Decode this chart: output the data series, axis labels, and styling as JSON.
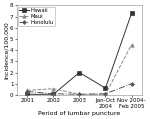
{
  "x_labels": [
    "2001",
    "2002",
    "2003",
    "Jan-Oct\n2004",
    "Nov 2004-\nFeb 2005"
  ],
  "x_positions": [
    0,
    1,
    2,
    3,
    4
  ],
  "series": [
    {
      "name": "Hawaii",
      "values": [
        0.05,
        0.05,
        2.0,
        0.6,
        7.3
      ],
      "color": "#333333",
      "linestyle": "-",
      "marker": "s",
      "markersize": 2.5,
      "linewidth": 0.7
    },
    {
      "name": "Maui",
      "values": [
        0.4,
        0.55,
        0.05,
        0.05,
        4.5
      ],
      "color": "#888888",
      "linestyle": "--",
      "marker": "^",
      "markersize": 2.5,
      "linewidth": 0.7
    },
    {
      "name": "Honolulu",
      "values": [
        0.3,
        0.1,
        0.05,
        0.1,
        1.0
      ],
      "color": "#555555",
      "linestyle": "-.",
      "marker": "D",
      "markersize": 2.0,
      "linewidth": 0.7
    }
  ],
  "xlabel": "Period of lumbar puncture",
  "ylabel": "Incidence/100,000",
  "ylim": [
    0,
    8
  ],
  "yticks": [
    0,
    1,
    2,
    3,
    4,
    5,
    6,
    7,
    8
  ],
  "background_color": "#ffffff",
  "xlabel_fontsize": 4.5,
  "ylabel_fontsize": 4.5,
  "tick_fontsize": 4.0,
  "legend_fontsize": 3.8,
  "legend_loc": "upper left"
}
